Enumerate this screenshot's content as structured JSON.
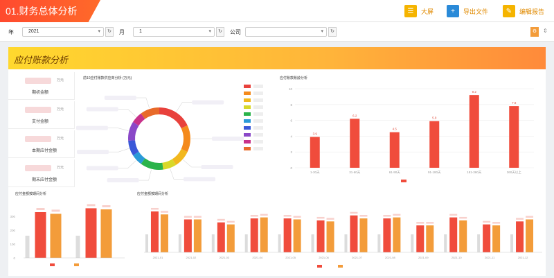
{
  "header": {
    "title": "01.财务总体分析"
  },
  "toolbar": {
    "btn1": "大屏",
    "btn2": "导出文件",
    "btn3": "编辑报告"
  },
  "filters": {
    "year_label": "年",
    "year_value": "2021",
    "month_label": "月",
    "month_value": "1",
    "company_label": "公司",
    "company_value": ""
  },
  "banner": {
    "title": "应付账款分析"
  },
  "kpis": [
    {
      "label": "期初金额",
      "unit": "万元"
    },
    {
      "label": "支付金额",
      "unit": "万元"
    },
    {
      "label": "本期应付金额",
      "unit": "万元"
    },
    {
      "label": "期末应付金额",
      "unit": "万元"
    }
  ],
  "panels": {
    "donut_title": "前10应付账款供应商分析 (万元)",
    "bar_title": "应付账款账龄分析",
    "bottom_left_title": "应付金额按期间分析",
    "bottom_right_title": "应付金额按期间分析"
  },
  "colors": {
    "accent": "#ff4a2e",
    "bar": "#f04c3c",
    "orange": "#f39c3a",
    "donut": [
      "#e8413c",
      "#f48a1c",
      "#f2b81e",
      "#d8d82a",
      "#2ab34a",
      "#2a9ad8",
      "#3a58d8",
      "#8a48c8",
      "#c8328a",
      "#e86a2a"
    ]
  },
  "chart_data": [
    {
      "type": "pie",
      "title": "前10应付账款供应商分析 (万元)",
      "values": [
        18,
        14,
        9,
        7,
        12,
        6,
        8,
        10,
        6,
        10
      ]
    },
    {
      "type": "bar",
      "title": "应付账款账龄分析",
      "categories": [
        "1-30天",
        "31-60天",
        "61-90天",
        "91-180天",
        "181-360天",
        "360天以上"
      ],
      "values": [
        3.9,
        6.2,
        4.5,
        5.9,
        9.2,
        7.8
      ],
      "ylim": [
        0,
        10
      ],
      "yticks": [
        0,
        2,
        4,
        6,
        8,
        10
      ]
    },
    {
      "type": "bar",
      "categories": [
        "",
        ""
      ],
      "series": [
        {
          "values": [
            330,
            358
          ]
        },
        {
          "values": [
            318,
            350
          ]
        }
      ],
      "ylim": [
        0,
        400
      ]
    },
    {
      "type": "bar",
      "categories": [
        "2021-01",
        "2021-02",
        "2021-03",
        "2021-04",
        "2021-05",
        "2021-06",
        "2021-07",
        "2021-08",
        "2021-09",
        "2021-10",
        "2021-11",
        "2021-12"
      ],
      "series": [
        {
          "values": [
            82,
            66,
            60,
            68,
            68,
            64,
            74,
            68,
            54,
            70,
            56,
            62
          ]
        },
        {
          "values": [
            76,
            66,
            56,
            70,
            66,
            62,
            68,
            70,
            54,
            64,
            54,
            66
          ]
        }
      ],
      "ylim": [
        0,
        100
      ]
    }
  ]
}
